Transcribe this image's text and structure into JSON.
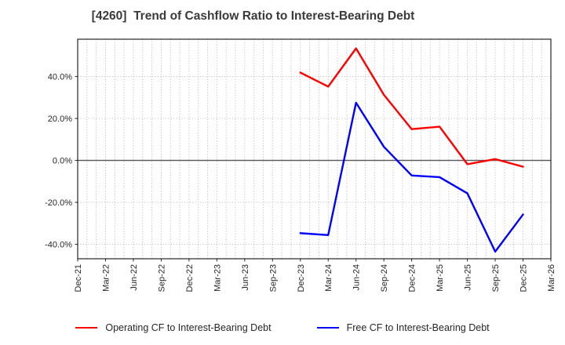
{
  "chart_data": {
    "type": "line",
    "title": "[4260]  Trend of Cashflow Ratio to Interest-Bearing Debt",
    "x_axis": {
      "tick_labels": [
        "Dec-21",
        "Mar-22",
        "Jun-22",
        "Sep-22",
        "Dec-22",
        "Mar-23",
        "Jun-23",
        "Sep-23",
        "Dec-23",
        "Mar-24",
        "Jun-24",
        "Sep-24",
        "Dec-24",
        "Mar-25",
        "Jun-25",
        "Sep-25",
        "Dec-25",
        "Mar-26"
      ],
      "months_per_tick": 3,
      "total_months": 51,
      "minor_grid": "monthly-dotted"
    },
    "y_axis": {
      "unit": "%",
      "tick_values": [
        40,
        20,
        0,
        -20,
        -40
      ],
      "tick_labels": [
        "40.0%",
        "20.0%",
        "0.0%",
        "-20.0%",
        "-40.0%"
      ],
      "limits": [
        -46.9,
        57.8
      ],
      "zero_line": true,
      "grid": "dotted"
    },
    "series": [
      {
        "name": "Operating CF to Interest-Bearing Debt",
        "color": "#ff0000",
        "x": [
          "Dec-23",
          "Mar-24",
          "Jun-24",
          "Sep-24",
          "Dec-24",
          "Mar-25",
          "Jun-25",
          "Sep-25",
          "Dec-25"
        ],
        "x_months": [
          24,
          27,
          30,
          33,
          36,
          39,
          42,
          45,
          48
        ],
        "values": [
          41.9,
          35.2,
          53.4,
          31.3,
          14.9,
          16.1,
          -1.8,
          0.6,
          -3.0
        ]
      },
      {
        "name": "Free CF to Interest-Bearing Debt",
        "color": "#0000ff",
        "x": [
          "Dec-23",
          "Mar-24",
          "Jun-24",
          "Sep-24",
          "Dec-24",
          "Mar-25",
          "Jun-25",
          "Sep-25",
          "Dec-25"
        ],
        "x_months": [
          24,
          27,
          30,
          33,
          36,
          39,
          42,
          45,
          48
        ],
        "values": [
          -34.7,
          -35.6,
          27.5,
          6.5,
          -7.2,
          -8.0,
          -15.7,
          -43.5,
          -25.8
        ]
      }
    ],
    "legend_position": "bottom"
  },
  "legend": {
    "items": [
      {
        "label": "Operating CF to Interest-Bearing Debt",
        "color": "#ff0000"
      },
      {
        "label": "Free CF to Interest-Bearing Debt",
        "color": "#0000ff"
      }
    ]
  },
  "style_colors": {
    "grid": "#b0b0b0",
    "axis_border": "#262626",
    "zero_line": "#555555",
    "tick_label": "#262626",
    "title": "#3a3a3a"
  }
}
